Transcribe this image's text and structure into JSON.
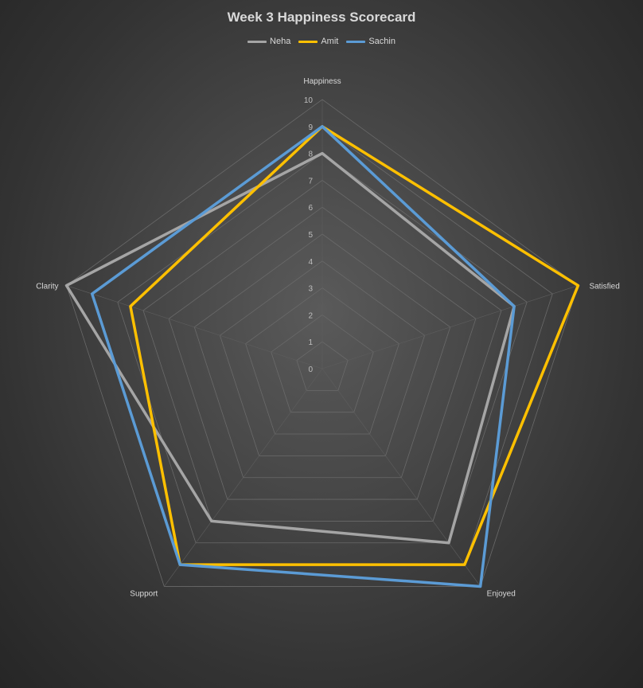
{
  "chart_data": {
    "type": "radar",
    "title": "Week 3  Happiness Scorecard",
    "categories": [
      "Happiness",
      "Satisfied",
      "Enjoyed",
      "Support",
      "Clarity"
    ],
    "rlim": [
      0,
      10
    ],
    "ticks": [
      "0",
      "1",
      "2",
      "3",
      "4",
      "5",
      "6",
      "7",
      "8",
      "9",
      "10"
    ],
    "legend_position": "top",
    "series": [
      {
        "name": "Neha",
        "color": "#a5a5a5",
        "values": [
          8,
          7.5,
          8,
          7,
          10
        ]
      },
      {
        "name": "Amit",
        "color": "#ffc000",
        "values": [
          9,
          10,
          9,
          9,
          7.5
        ]
      },
      {
        "name": "Sachin",
        "color": "#5b9bd5",
        "values": [
          9,
          7.5,
          10,
          9,
          9
        ]
      }
    ]
  }
}
